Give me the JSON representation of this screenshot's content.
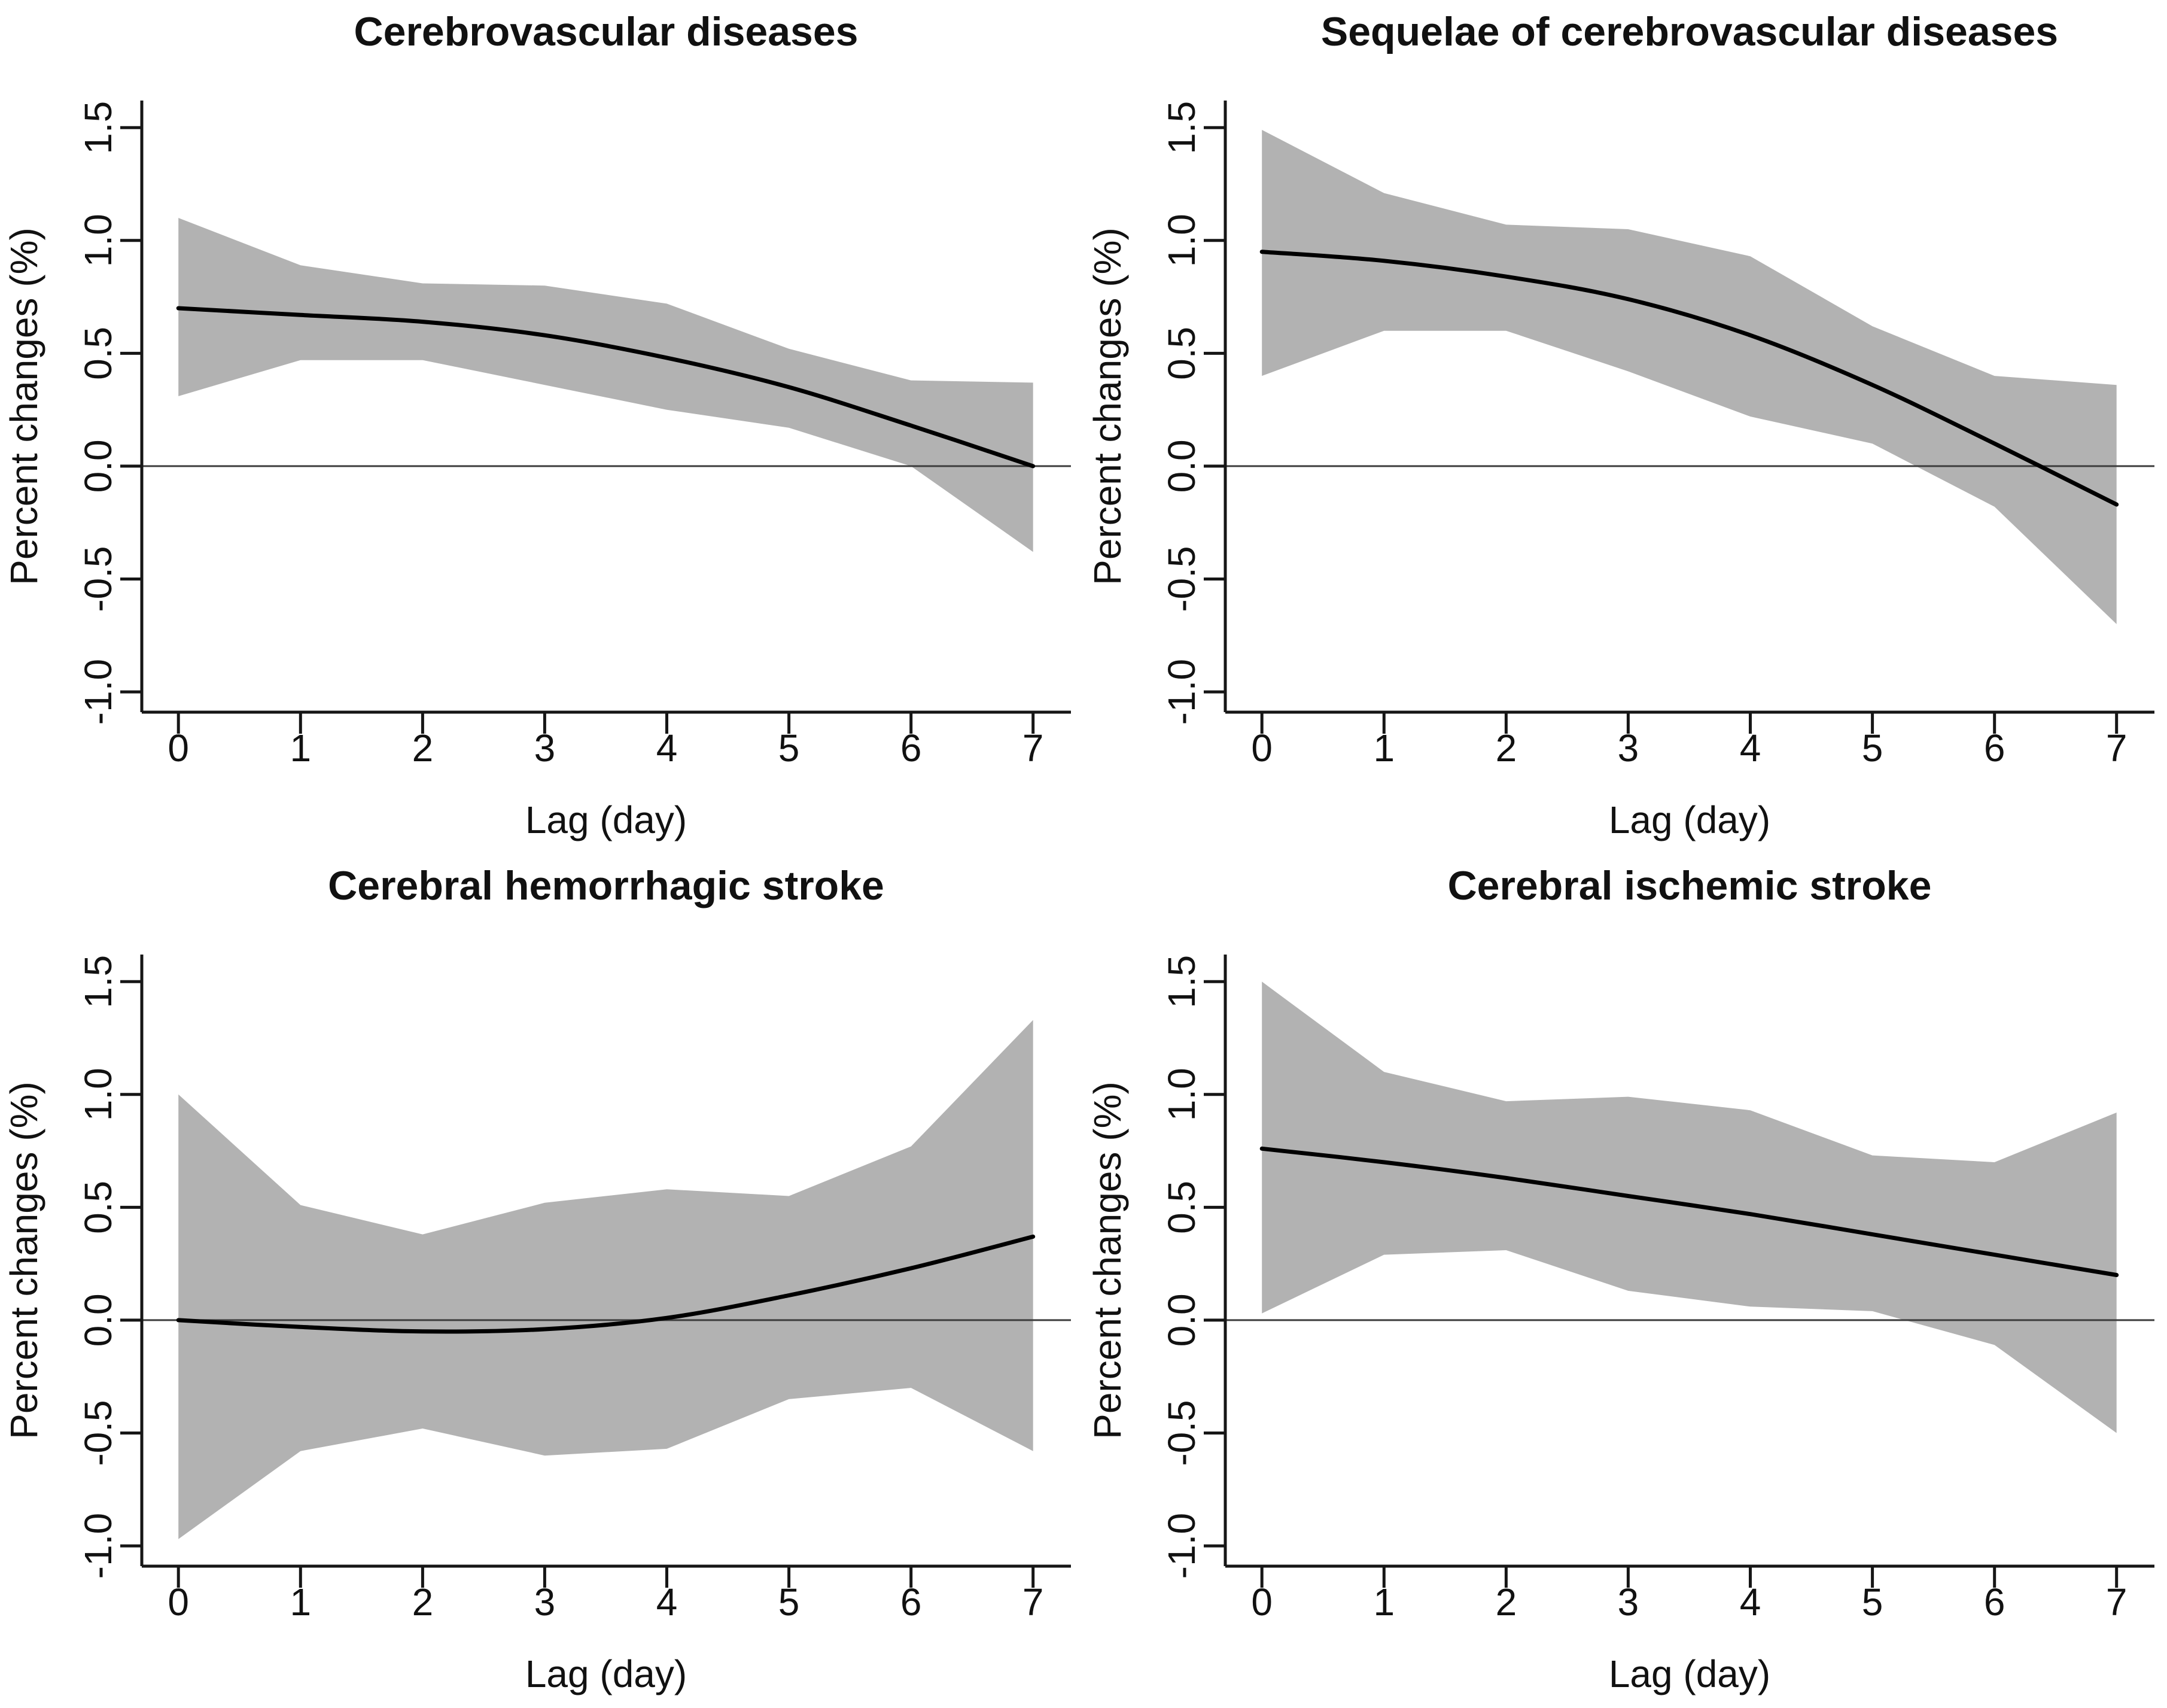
{
  "figure": {
    "type": "multi-panel-figure",
    "panels_layout": "2x2",
    "background": "#ffffff",
    "colors": {
      "band": "#b2b2b2",
      "estimate_line": "#000000",
      "zero_line": "#3d3d3d",
      "axis": "#161616",
      "text": "#111111"
    }
  },
  "chart_data": [
    {
      "type": "line",
      "title": "Cerebrovascular diseases",
      "xlabel": "Lag (day)",
      "ylabel": "Percent changes (%)",
      "x": [
        0,
        1,
        2,
        3,
        4,
        5,
        6,
        7
      ],
      "x_tick_labels": [
        "0",
        "1",
        "2",
        "3",
        "4",
        "5",
        "6",
        "7"
      ],
      "y_ticks": [
        -1.0,
        -0.5,
        0.0,
        0.5,
        1.0,
        1.5
      ],
      "y_tick_labels": [
        "-1.0",
        "-0.5",
        "0.0",
        "0.5",
        "1.0",
        "1.5"
      ],
      "xlim": [
        -0.3,
        7.31
      ],
      "ylim": [
        -1.09,
        1.62
      ],
      "grid": false,
      "legend": "none",
      "reference_line_y": 0,
      "series": [
        {
          "name": "estimate",
          "values": [
            0.7,
            0.67,
            0.64,
            0.58,
            0.48,
            0.35,
            0.18,
            0.0
          ]
        },
        {
          "name": "ci_upper",
          "values": [
            1.1,
            0.89,
            0.81,
            0.8,
            0.72,
            0.52,
            0.38,
            0.37
          ]
        },
        {
          "name": "ci_lower",
          "values": [
            0.31,
            0.47,
            0.47,
            0.36,
            0.25,
            0.17,
            0.0,
            -0.38
          ]
        }
      ]
    },
    {
      "type": "line",
      "title": "Sequelae of cerebrovascular diseases",
      "xlabel": "Lag (day)",
      "ylabel": "Percent changes (%)",
      "x": [
        0,
        1,
        2,
        3,
        4,
        5,
        6,
        7
      ],
      "x_tick_labels": [
        "0",
        "1",
        "2",
        "3",
        "4",
        "5",
        "6",
        "7"
      ],
      "y_ticks": [
        -1.0,
        -0.5,
        0.0,
        0.5,
        1.0,
        1.5
      ],
      "y_tick_labels": [
        "-1.0",
        "-0.5",
        "0.0",
        "0.5",
        "1.0",
        "1.5"
      ],
      "xlim": [
        -0.3,
        7.31
      ],
      "ylim": [
        -1.09,
        1.62
      ],
      "grid": false,
      "legend": "none",
      "reference_line_y": 0,
      "series": [
        {
          "name": "estimate",
          "values": [
            0.95,
            0.91,
            0.84,
            0.74,
            0.58,
            0.36,
            0.1,
            -0.17
          ]
        },
        {
          "name": "ci_upper",
          "values": [
            1.49,
            1.21,
            1.07,
            1.05,
            0.93,
            0.62,
            0.4,
            0.36
          ]
        },
        {
          "name": "ci_lower",
          "values": [
            0.4,
            0.6,
            0.6,
            0.42,
            0.22,
            0.1,
            -0.18,
            -0.7
          ]
        }
      ]
    },
    {
      "type": "line",
      "title": "Cerebral hemorrhagic stroke",
      "xlabel": "Lag (day)",
      "ylabel": "Percent changes (%)",
      "x": [
        0,
        1,
        2,
        3,
        4,
        5,
        6,
        7
      ],
      "x_tick_labels": [
        "0",
        "1",
        "2",
        "3",
        "4",
        "5",
        "6",
        "7"
      ],
      "y_ticks": [
        -1.0,
        -0.5,
        0.0,
        0.5,
        1.0,
        1.5
      ],
      "y_tick_labels": [
        "-1.0",
        "-0.5",
        "0.0",
        "0.5",
        "1.0",
        "1.5"
      ],
      "xlim": [
        -0.3,
        7.31
      ],
      "ylim": [
        -1.09,
        1.62
      ],
      "grid": false,
      "legend": "none",
      "reference_line_y": 0,
      "series": [
        {
          "name": "estimate",
          "values": [
            0.0,
            -0.03,
            -0.05,
            -0.04,
            0.01,
            0.11,
            0.23,
            0.37
          ]
        },
        {
          "name": "ci_upper",
          "values": [
            1.0,
            0.51,
            0.38,
            0.52,
            0.58,
            0.55,
            0.77,
            1.33
          ]
        },
        {
          "name": "ci_lower",
          "values": [
            -0.97,
            -0.58,
            -0.48,
            -0.6,
            -0.57,
            -0.35,
            -0.3,
            -0.58
          ]
        }
      ]
    },
    {
      "type": "line",
      "title": "Cerebral ischemic stroke",
      "xlabel": "Lag (day)",
      "ylabel": "Percent changes (%)",
      "x": [
        0,
        1,
        2,
        3,
        4,
        5,
        6,
        7
      ],
      "x_tick_labels": [
        "0",
        "1",
        "2",
        "3",
        "4",
        "5",
        "6",
        "7"
      ],
      "y_ticks": [
        -1.0,
        -0.5,
        0.0,
        0.5,
        1.0,
        1.5
      ],
      "y_tick_labels": [
        "-1.0",
        "-0.5",
        "0.0",
        "0.5",
        "1.0",
        "1.5"
      ],
      "xlim": [
        -0.3,
        7.31
      ],
      "ylim": [
        -1.09,
        1.62
      ],
      "grid": false,
      "legend": "none",
      "reference_line_y": 0,
      "series": [
        {
          "name": "estimate",
          "values": [
            0.76,
            0.7,
            0.63,
            0.55,
            0.47,
            0.38,
            0.29,
            0.2
          ]
        },
        {
          "name": "ci_upper",
          "values": [
            1.5,
            1.1,
            0.97,
            0.99,
            0.93,
            0.73,
            0.7,
            0.92
          ]
        },
        {
          "name": "ci_lower",
          "values": [
            0.03,
            0.29,
            0.31,
            0.13,
            0.06,
            0.04,
            -0.11,
            -0.5
          ]
        }
      ]
    }
  ]
}
